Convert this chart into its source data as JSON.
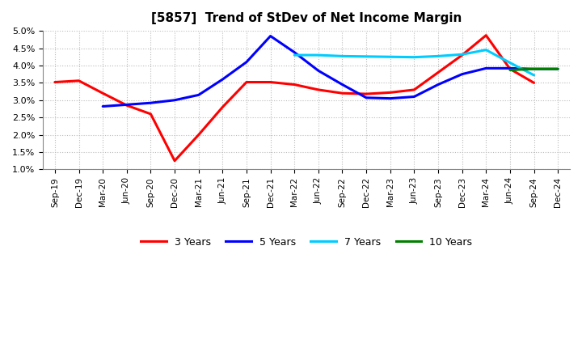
{
  "title": "[5857]  Trend of StDev of Net Income Margin",
  "x_labels": [
    "Sep-19",
    "Dec-19",
    "Mar-20",
    "Jun-20",
    "Sep-20",
    "Dec-20",
    "Mar-21",
    "Jun-21",
    "Sep-21",
    "Dec-21",
    "Mar-22",
    "Jun-22",
    "Sep-22",
    "Dec-22",
    "Mar-23",
    "Jun-23",
    "Sep-23",
    "Dec-23",
    "Mar-24",
    "Jun-24",
    "Sep-24",
    "Dec-24"
  ],
  "series_3yr": [
    3.52,
    3.56,
    3.2,
    2.85,
    2.6,
    1.25,
    2.0,
    2.8,
    3.52,
    3.52,
    3.45,
    3.3,
    3.2,
    3.18,
    3.22,
    3.3,
    3.8,
    4.3,
    4.87,
    3.9,
    3.5,
    null
  ],
  "series_5yr": [
    null,
    null,
    2.82,
    2.87,
    2.92,
    3.0,
    3.15,
    3.6,
    4.1,
    4.85,
    4.38,
    3.85,
    3.45,
    3.07,
    3.05,
    3.1,
    3.45,
    3.75,
    3.92,
    3.92,
    3.9,
    3.9
  ],
  "series_7yr": [
    null,
    null,
    null,
    null,
    null,
    null,
    null,
    null,
    null,
    null,
    4.3,
    4.3,
    4.27,
    4.26,
    4.25,
    4.24,
    4.27,
    4.32,
    4.45,
    4.08,
    3.72,
    null
  ],
  "series_10yr": [
    null,
    null,
    null,
    null,
    null,
    null,
    null,
    null,
    null,
    null,
    null,
    null,
    null,
    null,
    null,
    null,
    null,
    null,
    null,
    3.87,
    3.9,
    3.9
  ],
  "colors": [
    "#FF0000",
    "#0000FF",
    "#00CCFF",
    "#008000"
  ],
  "ylim": [
    1.0,
    5.0
  ],
  "yticks": [
    1.0,
    1.5,
    2.0,
    2.5,
    3.0,
    3.5,
    4.0,
    4.5,
    5.0
  ],
  "background_color": "#FFFFFF",
  "grid_color": "#BBBBBB",
  "legend_labels": [
    "3 Years",
    "5 Years",
    "7 Years",
    "10 Years"
  ]
}
